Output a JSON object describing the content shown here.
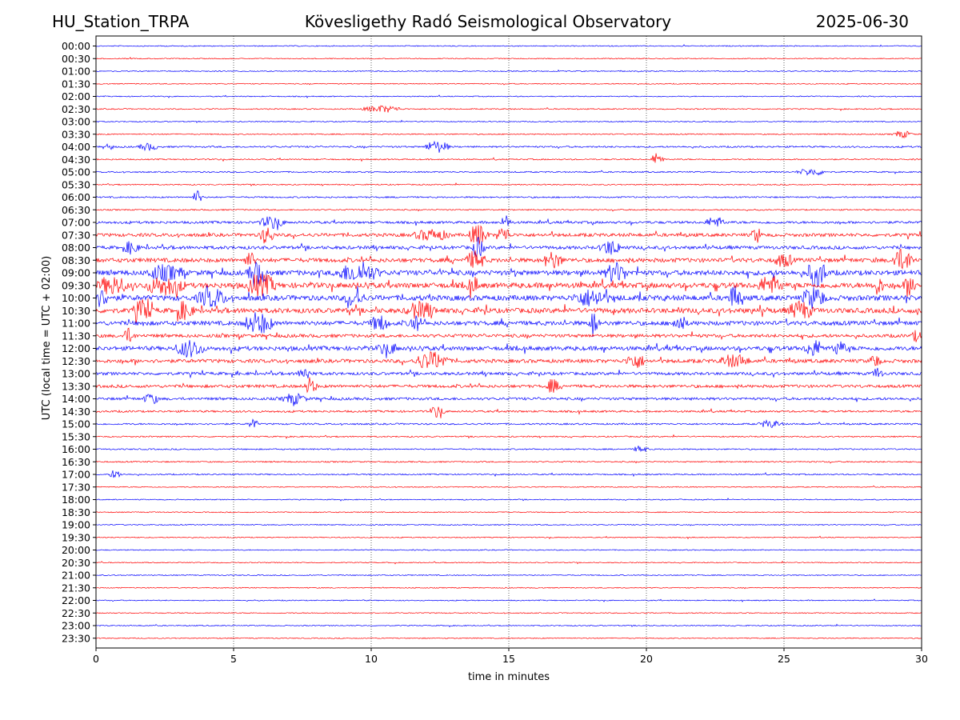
{
  "header": {
    "station": "HU_Station_TRPA",
    "observatory": "Kövesligethy Radó Seismological Observatory",
    "date": "2025-06-30"
  },
  "chart_data": {
    "type": "line",
    "subtype": "helicorder",
    "xlabel": "time in minutes",
    "ylabel": "UTC (local time = UTC + 02:00)",
    "xlim": [
      0,
      30
    ],
    "x_ticks": [
      0,
      5,
      10,
      15,
      20,
      25,
      30
    ],
    "row_labels": [
      "00:00",
      "00:30",
      "01:00",
      "01:30",
      "02:00",
      "02:30",
      "03:00",
      "03:30",
      "04:00",
      "04:30",
      "05:00",
      "05:30",
      "06:00",
      "06:30",
      "07:00",
      "07:30",
      "08:00",
      "08:30",
      "09:00",
      "09:30",
      "10:00",
      "10:30",
      "11:00",
      "11:30",
      "12:00",
      "12:30",
      "13:00",
      "13:30",
      "14:00",
      "14:30",
      "15:00",
      "15:30",
      "16:00",
      "16:30",
      "17:00",
      "17:30",
      "18:00",
      "18:30",
      "19:00",
      "19:30",
      "20:00",
      "20:30",
      "21:00",
      "21:30",
      "22:00",
      "22:30",
      "23:00",
      "23:30"
    ],
    "row_colors": [
      "#0000ff",
      "#ff0000"
    ],
    "gridlines_x": "dotted",
    "noise_level": [
      0.6,
      0.6,
      0.6,
      0.6,
      0.6,
      0.7,
      0.6,
      0.7,
      1.0,
      0.8,
      0.8,
      0.7,
      0.9,
      0.8,
      1.5,
      2.0,
      2.0,
      2.5,
      3.0,
      3.2,
      3.2,
      3.0,
      2.6,
      2.0,
      2.5,
      2.2,
      1.8,
      1.8,
      1.6,
      1.2,
      1.0,
      0.8,
      0.8,
      0.8,
      0.8,
      0.6,
      0.6,
      0.6,
      0.6,
      0.6,
      0.6,
      0.6,
      0.6,
      0.6,
      0.6,
      0.6,
      0.6,
      0.6
    ],
    "events": [
      {
        "row": 5,
        "minute": 10.4,
        "amplitude": 4,
        "duration": 1.6
      },
      {
        "row": 7,
        "minute": 29.3,
        "amplitude": 4,
        "duration": 0.8
      },
      {
        "row": 8,
        "minute": 0.5,
        "amplitude": 4,
        "duration": 0.3
      },
      {
        "row": 8,
        "minute": 1.9,
        "amplitude": 4,
        "duration": 0.8
      },
      {
        "row": 8,
        "minute": 12.4,
        "amplitude": 7,
        "duration": 1.0
      },
      {
        "row": 9,
        "minute": 20.4,
        "amplitude": 8,
        "duration": 0.5
      },
      {
        "row": 10,
        "minute": 26.0,
        "amplitude": 4,
        "duration": 1.2
      },
      {
        "row": 12,
        "minute": 3.7,
        "amplitude": 8,
        "duration": 0.4
      },
      {
        "row": 14,
        "minute": 6.4,
        "amplitude": 7,
        "duration": 1.0
      },
      {
        "row": 14,
        "minute": 14.9,
        "amplitude": 8,
        "duration": 0.4
      },
      {
        "row": 14,
        "minute": 22.5,
        "amplitude": 6,
        "duration": 0.8
      },
      {
        "row": 15,
        "minute": 6.2,
        "amplitude": 10,
        "duration": 0.6
      },
      {
        "row": 15,
        "minute": 12.2,
        "amplitude": 6,
        "duration": 1.5
      },
      {
        "row": 15,
        "minute": 13.9,
        "amplitude": 12,
        "duration": 0.8
      },
      {
        "row": 15,
        "minute": 14.8,
        "amplitude": 9,
        "duration": 0.6
      },
      {
        "row": 15,
        "minute": 24.0,
        "amplitude": 9,
        "duration": 0.4
      },
      {
        "row": 16,
        "minute": 1.3,
        "amplitude": 7,
        "duration": 0.6
      },
      {
        "row": 16,
        "minute": 13.9,
        "amplitude": 12,
        "duration": 0.5
      },
      {
        "row": 16,
        "minute": 18.7,
        "amplitude": 8,
        "duration": 0.9
      },
      {
        "row": 17,
        "minute": 5.6,
        "amplitude": 8,
        "duration": 0.5
      },
      {
        "row": 17,
        "minute": 13.8,
        "amplitude": 10,
        "duration": 0.8
      },
      {
        "row": 17,
        "minute": 16.6,
        "amplitude": 9,
        "duration": 0.8
      },
      {
        "row": 17,
        "minute": 25.0,
        "amplitude": 7,
        "duration": 0.8
      },
      {
        "row": 17,
        "minute": 29.3,
        "amplitude": 12,
        "duration": 0.9
      },
      {
        "row": 18,
        "minute": 2.5,
        "amplitude": 8,
        "duration": 1.5
      },
      {
        "row": 18,
        "minute": 5.9,
        "amplitude": 12,
        "duration": 0.9
      },
      {
        "row": 18,
        "minute": 9.5,
        "amplitude": 10,
        "duration": 1.8
      },
      {
        "row": 18,
        "minute": 18.9,
        "amplitude": 11,
        "duration": 0.9
      },
      {
        "row": 18,
        "minute": 26.2,
        "amplitude": 16,
        "duration": 0.8
      },
      {
        "row": 19,
        "minute": 0.6,
        "amplitude": 10,
        "duration": 1.2
      },
      {
        "row": 19,
        "minute": 2.5,
        "amplitude": 10,
        "duration": 1.6
      },
      {
        "row": 19,
        "minute": 6.0,
        "amplitude": 12,
        "duration": 1.2
      },
      {
        "row": 19,
        "minute": 13.7,
        "amplitude": 9,
        "duration": 0.5
      },
      {
        "row": 19,
        "minute": 24.5,
        "amplitude": 10,
        "duration": 1.0
      },
      {
        "row": 19,
        "minute": 28.4,
        "amplitude": 9,
        "duration": 0.5
      },
      {
        "row": 19,
        "minute": 29.6,
        "amplitude": 10,
        "duration": 0.6
      },
      {
        "row": 20,
        "minute": 0.2,
        "amplitude": 9,
        "duration": 0.6
      },
      {
        "row": 20,
        "minute": 4.2,
        "amplitude": 10,
        "duration": 1.2
      },
      {
        "row": 20,
        "minute": 9.4,
        "amplitude": 9,
        "duration": 0.8
      },
      {
        "row": 20,
        "minute": 18.0,
        "amplitude": 9,
        "duration": 1.5
      },
      {
        "row": 20,
        "minute": 23.2,
        "amplitude": 13,
        "duration": 0.5
      },
      {
        "row": 20,
        "minute": 26.1,
        "amplitude": 12,
        "duration": 0.9
      },
      {
        "row": 21,
        "minute": 1.7,
        "amplitude": 12,
        "duration": 0.8
      },
      {
        "row": 21,
        "minute": 3.2,
        "amplitude": 9,
        "duration": 0.8
      },
      {
        "row": 21,
        "minute": 11.8,
        "amplitude": 9,
        "duration": 1.2
      },
      {
        "row": 21,
        "minute": 25.6,
        "amplitude": 10,
        "duration": 1.0
      },
      {
        "row": 22,
        "minute": 5.9,
        "amplitude": 12,
        "duration": 1.2
      },
      {
        "row": 22,
        "minute": 10.3,
        "amplitude": 8,
        "duration": 0.8
      },
      {
        "row": 22,
        "minute": 11.6,
        "amplitude": 8,
        "duration": 0.6
      },
      {
        "row": 22,
        "minute": 18.1,
        "amplitude": 16,
        "duration": 0.4
      },
      {
        "row": 22,
        "minute": 21.2,
        "amplitude": 8,
        "duration": 0.6
      },
      {
        "row": 23,
        "minute": 1.2,
        "amplitude": 8,
        "duration": 0.5
      },
      {
        "row": 23,
        "minute": 29.8,
        "amplitude": 6,
        "duration": 0.4
      },
      {
        "row": 24,
        "minute": 3.4,
        "amplitude": 9,
        "duration": 1.2
      },
      {
        "row": 24,
        "minute": 10.6,
        "amplitude": 6,
        "duration": 0.9
      },
      {
        "row": 24,
        "minute": 26.1,
        "amplitude": 9,
        "duration": 0.8
      },
      {
        "row": 24,
        "minute": 27.0,
        "amplitude": 7,
        "duration": 0.6
      },
      {
        "row": 25,
        "minute": 12.2,
        "amplitude": 10,
        "duration": 1.4
      },
      {
        "row": 25,
        "minute": 19.6,
        "amplitude": 8,
        "duration": 0.8
      },
      {
        "row": 25,
        "minute": 23.2,
        "amplitude": 7,
        "duration": 1.2
      },
      {
        "row": 25,
        "minute": 28.3,
        "amplitude": 7,
        "duration": 0.5
      },
      {
        "row": 26,
        "minute": 7.6,
        "amplitude": 7,
        "duration": 0.6
      },
      {
        "row": 26,
        "minute": 28.4,
        "amplitude": 7,
        "duration": 0.4
      },
      {
        "row": 27,
        "minute": 7.8,
        "amplitude": 10,
        "duration": 0.5
      },
      {
        "row": 27,
        "minute": 16.6,
        "amplitude": 8,
        "duration": 0.5
      },
      {
        "row": 28,
        "minute": 2.0,
        "amplitude": 6,
        "duration": 0.6
      },
      {
        "row": 28,
        "minute": 7.2,
        "amplitude": 6,
        "duration": 1.0
      },
      {
        "row": 29,
        "minute": 12.4,
        "amplitude": 7,
        "duration": 0.6
      },
      {
        "row": 30,
        "minute": 5.7,
        "amplitude": 6,
        "duration": 0.4
      },
      {
        "row": 30,
        "minute": 24.5,
        "amplitude": 4,
        "duration": 1.0
      },
      {
        "row": 32,
        "minute": 19.8,
        "amplitude": 4,
        "duration": 0.6
      },
      {
        "row": 34,
        "minute": 0.7,
        "amplitude": 5,
        "duration": 0.5
      }
    ]
  }
}
